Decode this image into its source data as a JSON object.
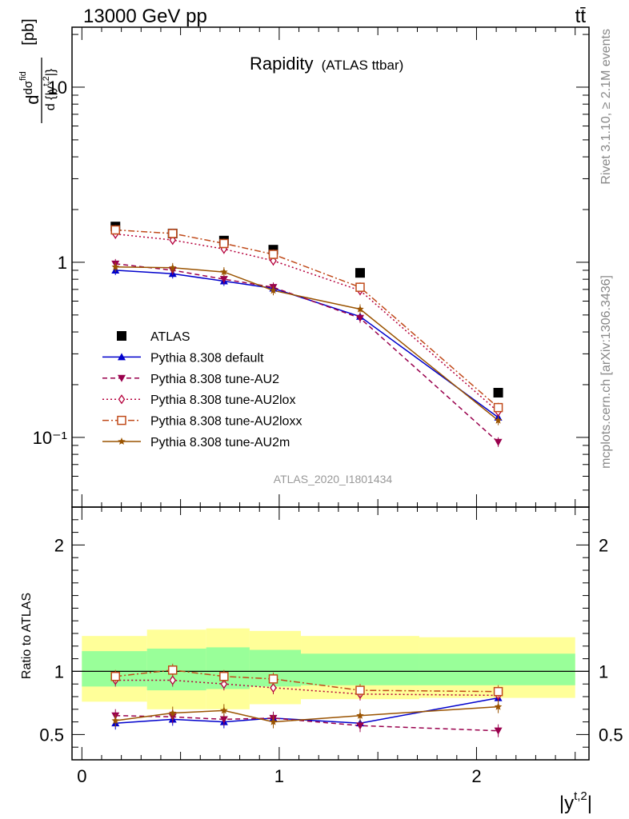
{
  "header": {
    "left": "13000 GeV pp",
    "right": "tt̄"
  },
  "side_labels": {
    "rivet": "Rivet 3.1.10, ≥ 2.1M events",
    "mcplots": "mcplots.cern.ch [arXiv:1306.3436]"
  },
  "chart_data": [
    {
      "type": "line",
      "title": "Rapidity",
      "subtitle": "(ATLAS ttbar)",
      "watermark": "ATLAS_2020_I1801434",
      "ylabel": "d dσ^fid / d {|y^t,2|} [pb]",
      "yscale": "log",
      "ylim": [
        0.04,
        22
      ],
      "xlim": [
        -0.05,
        2.57
      ],
      "yticks": [
        {
          "value": 0.1,
          "label": "10⁻¹"
        },
        {
          "value": 1,
          "label": "1"
        },
        {
          "value": 10,
          "label": "10"
        }
      ],
      "legend_position": "center-left",
      "x": [
        0.17,
        0.46,
        0.72,
        0.97,
        1.41,
        2.11
      ],
      "series": [
        {
          "name": "ATLAS",
          "color": "#000000",
          "marker": "square-filled",
          "line": "none",
          "values": [
            1.6,
            1.46,
            1.33,
            1.18,
            0.87,
            0.18
          ]
        },
        {
          "name": "Pythia 8.308 default",
          "color": "#0000cc",
          "marker": "triangle-up",
          "line": "solid",
          "values": [
            0.9,
            0.86,
            0.78,
            0.71,
            0.49,
            0.13
          ]
        },
        {
          "name": "Pythia 8.308 tune-AU2",
          "color": "#99004d",
          "marker": "triangle-down",
          "line": "dashed",
          "values": [
            0.98,
            0.9,
            0.8,
            0.72,
            0.48,
            0.094
          ]
        },
        {
          "name": "Pythia 8.308 tune-AU2lox",
          "color": "#b5003c",
          "marker": "diamond-open",
          "line": "dotted",
          "values": [
            1.45,
            1.34,
            1.19,
            1.02,
            0.69,
            0.14
          ]
        },
        {
          "name": "Pythia 8.308 tune-AU2loxx",
          "color": "#c04a1a",
          "marker": "square-open",
          "line": "dashdot",
          "values": [
            1.53,
            1.46,
            1.28,
            1.11,
            0.72,
            0.148
          ]
        },
        {
          "name": "Pythia 8.308 tune-AU2m",
          "color": "#9a5300",
          "marker": "star",
          "line": "solid",
          "values": [
            0.94,
            0.93,
            0.88,
            0.69,
            0.54,
            0.125
          ]
        }
      ]
    },
    {
      "type": "line",
      "ylabel": "Ratio to ATLAS",
      "xlabel": "|y^t,2|",
      "ylim": [
        0.3,
        2.3
      ],
      "xlim": [
        -0.05,
        2.57
      ],
      "xticks": [
        0,
        1,
        2
      ],
      "yticks": [
        0.5,
        1,
        2
      ],
      "bands": {
        "bin_edges": [
          0,
          0.33,
          0.63,
          0.85,
          1.11,
          1.71,
          2.5
        ],
        "yellow": [
          [
            0.76,
            1.28
          ],
          [
            0.7,
            1.33
          ],
          [
            0.7,
            1.34
          ],
          [
            0.74,
            1.32
          ],
          [
            0.78,
            1.28
          ],
          [
            0.79,
            1.27
          ]
        ],
        "green": [
          [
            0.88,
            1.16
          ],
          [
            0.85,
            1.18
          ],
          [
            0.86,
            1.19
          ],
          [
            0.88,
            1.17
          ],
          [
            0.89,
            1.14
          ],
          [
            0.89,
            1.14
          ]
        ],
        "yellow_color": "#ffff99",
        "green_color": "#99ff99"
      },
      "x": [
        0.17,
        0.46,
        0.72,
        0.97,
        1.41,
        2.11
      ],
      "series": [
        {
          "name": "Pythia 8.308 default",
          "values": [
            0.59,
            0.62,
            0.6,
            0.63,
            0.59,
            0.79
          ]
        },
        {
          "name": "Pythia 8.308 tune-AU2",
          "values": [
            0.65,
            0.64,
            0.62,
            0.63,
            0.57,
            0.53
          ]
        },
        {
          "name": "Pythia 8.308 tune-AU2lox",
          "values": [
            0.93,
            0.93,
            0.9,
            0.87,
            0.82,
            0.81
          ]
        },
        {
          "name": "Pythia 8.308 tune-AU2loxx",
          "values": [
            0.96,
            1.01,
            0.96,
            0.94,
            0.85,
            0.84
          ]
        },
        {
          "name": "Pythia 8.308 tune-AU2m",
          "values": [
            0.61,
            0.67,
            0.69,
            0.6,
            0.65,
            0.72
          ]
        }
      ]
    }
  ]
}
